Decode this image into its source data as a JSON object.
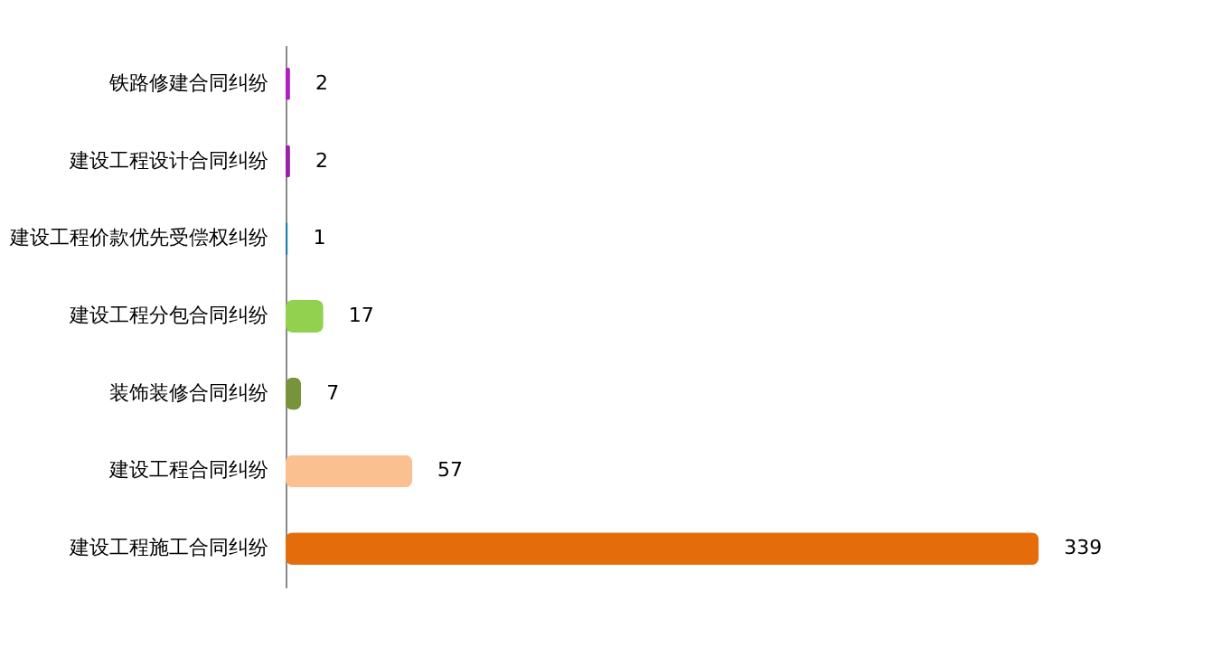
{
  "chart_data": {
    "type": "bar",
    "orientation": "horizontal",
    "categories": [
      "铁路修建合同纠纷",
      "建设工程设计合同纠纷",
      "建设工程价款优先受偿权纠纷",
      "建设工程分包合同纠纷",
      "装饰装修合同纠纷",
      "建设工程合同纠纷",
      "建设工程施工合同纠纷"
    ],
    "values": [
      2,
      2,
      1,
      17,
      7,
      57,
      339
    ],
    "colors": [
      "#b21fc0",
      "#9b1fa8",
      "#1f7fb0",
      "#92d050",
      "#77933c",
      "#fac090",
      "#e46c0a"
    ],
    "data_labels": true,
    "grid": false
  }
}
